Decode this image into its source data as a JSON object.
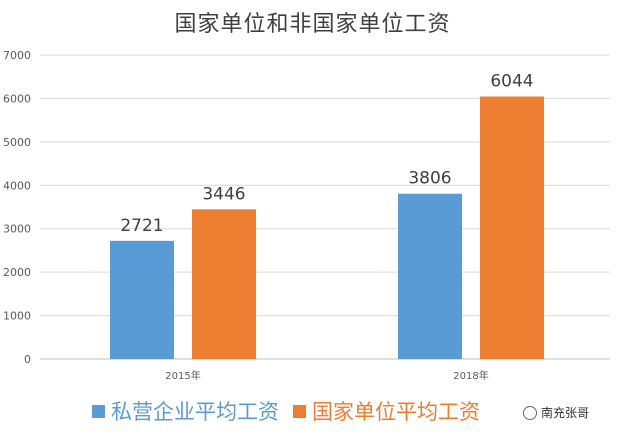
{
  "chart_data": {
    "type": "bar",
    "title": "国家单位和非国家单位工资",
    "categories": [
      "2015年",
      "2018年"
    ],
    "series": [
      {
        "name": "私营企业平均工资",
        "color": "#5B9BD5",
        "values": [
          2721,
          3806
        ]
      },
      {
        "name": "国家单位平均工资",
        "color": "#ED7D31",
        "values": [
          3446,
          6044
        ]
      }
    ],
    "ylim": [
      0,
      7000
    ],
    "yticks": [
      0,
      1000,
      2000,
      3000,
      4000,
      5000,
      6000,
      7000
    ],
    "grid": true,
    "legend_position": "bottom"
  },
  "watermark": {
    "icon": "wechat-icon",
    "text": "南充张哥"
  }
}
